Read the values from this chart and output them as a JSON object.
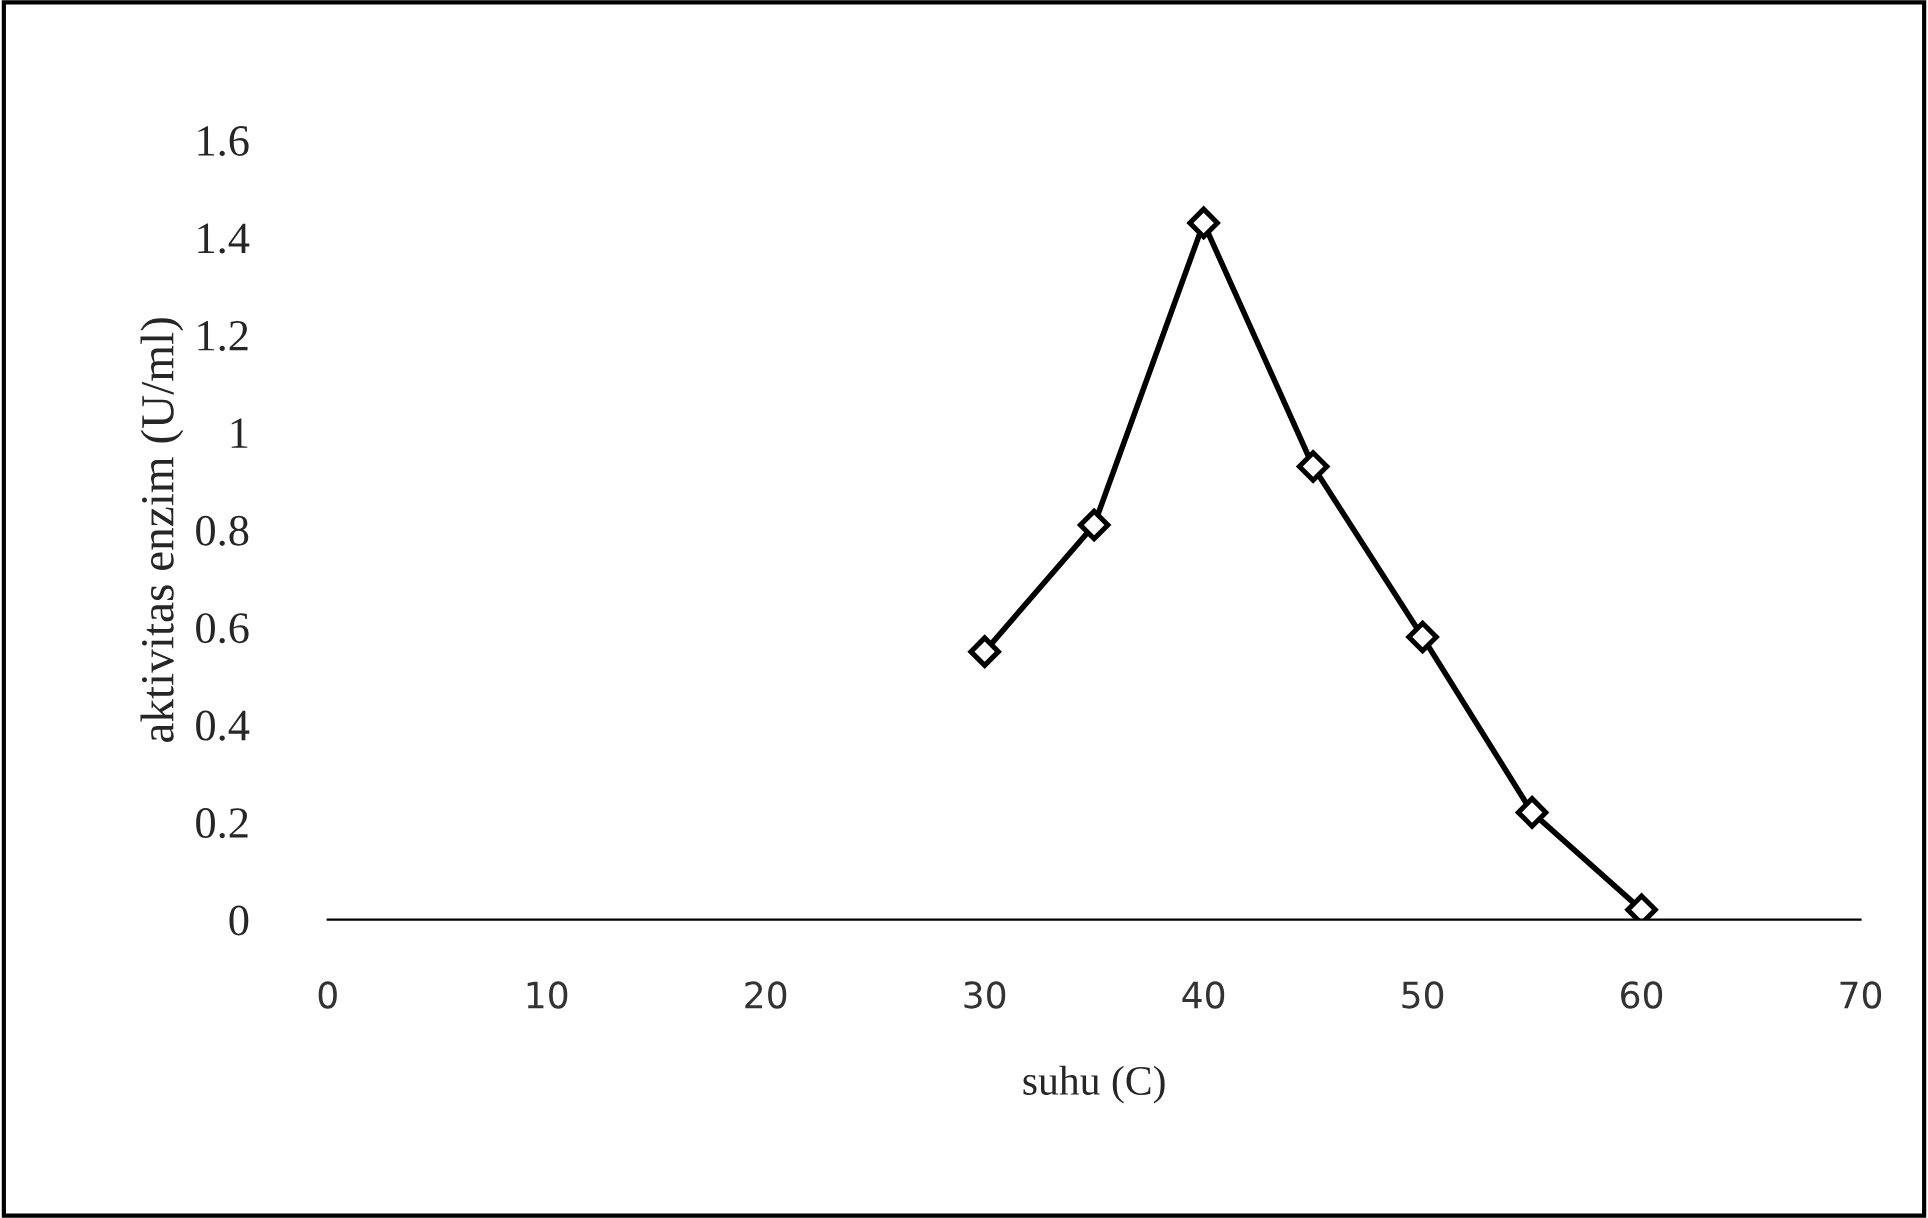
{
  "chart_data": {
    "type": "line",
    "xlabel": "suhu (C)",
    "ylabel": "aktivitas enzim (U/ml)",
    "x": [
      30,
      35,
      40,
      45,
      50,
      55,
      60
    ],
    "series": [
      {
        "color": "#000000",
        "values": [
          0.55,
          0.81,
          1.43,
          0.93,
          0.58,
          0.22,
          0.02
        ]
      }
    ],
    "xlim": [
      0,
      70
    ],
    "xticks": [
      0,
      10,
      20,
      30,
      40,
      50,
      60,
      70
    ],
    "ylim": [
      0,
      1.6
    ],
    "yticks": [
      0,
      0.2,
      0.4,
      0.6,
      0.8,
      1,
      1.2,
      1.4,
      1.6
    ],
    "marker": "diamond",
    "line_style": "solid",
    "grid": false,
    "legend": false
  }
}
